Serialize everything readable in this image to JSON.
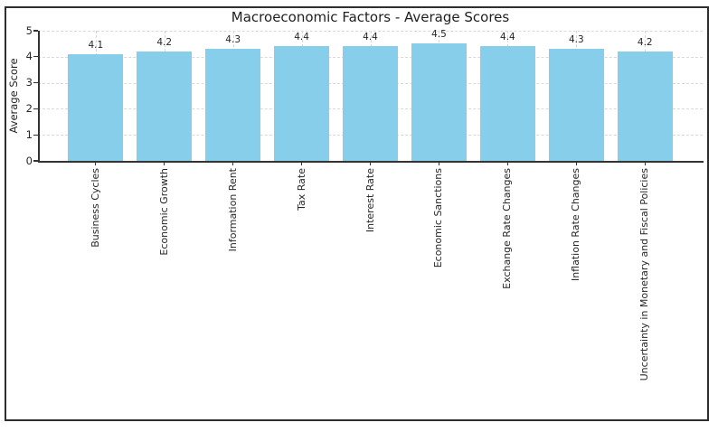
{
  "figure": {
    "border_color": "#2f2f2f",
    "background_color": "#ffffff"
  },
  "chart_data": {
    "type": "bar",
    "title": "Macroeconomic Factors - Average Scores",
    "xlabel": "",
    "ylabel": "Average Score",
    "categories": [
      "Business Cycles",
      "Economic Growth",
      "Information Rent",
      "Tax Rate",
      "Interest Rate",
      "Economic Sanctions",
      "Exchange Rate Changes",
      "Inflation Rate Changes",
      "Uncertainty in Monetary and Fiscal Policies"
    ],
    "values": [
      4.1,
      4.2,
      4.3,
      4.4,
      4.4,
      4.5,
      4.4,
      4.3,
      4.2
    ],
    "bar_labels": [
      "4.1",
      "4.2",
      "4.3",
      "4.4",
      "4.4",
      "4.5",
      "4.4",
      "4.3",
      "4.2"
    ],
    "ylim": [
      0,
      5
    ],
    "yticks": [
      0,
      1,
      2,
      3,
      4,
      5
    ],
    "grid": "dashed, both axes",
    "legend": "none",
    "x_tick_label_rotation": 90,
    "bar_color": "#87ceeb",
    "grid_color": "#d9d9d9",
    "spine_color": "#333333",
    "text_color": "#262626"
  }
}
